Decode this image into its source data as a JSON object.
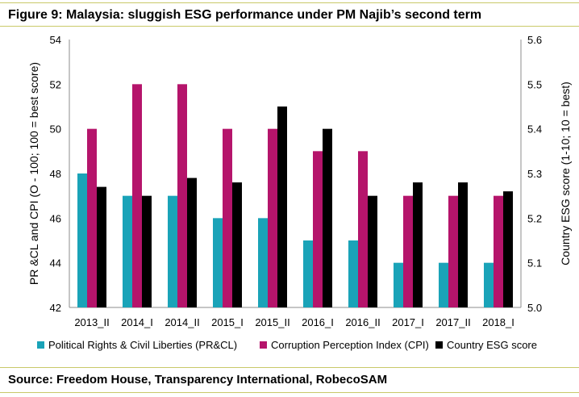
{
  "title": "Figure 9: Malaysia: sluggish ESG performance under PM Najib’s second term",
  "source": "Source: Freedom House, Transparency International, RobecoSAM",
  "chart_data": {
    "type": "bar",
    "categories": [
      "2013_II",
      "2014_I",
      "2014_II",
      "2015_I",
      "2015_II",
      "2016_I",
      "2016_II",
      "2017_I",
      "2017_II",
      "2018_I"
    ],
    "series": [
      {
        "name": "Political Rights & Civil Liberties (PR&CL)",
        "axis": "left",
        "color": "#1aa3b8",
        "values": [
          48,
          47,
          47,
          46,
          46,
          45,
          45,
          44,
          44,
          44
        ]
      },
      {
        "name": "Corruption Perception Index (CPI)",
        "axis": "left",
        "color": "#b5146b",
        "values": [
          50,
          52,
          52,
          50,
          50,
          49,
          49,
          47,
          47,
          47
        ]
      },
      {
        "name": "Country ESG score",
        "axis": "right",
        "color": "#000000",
        "values": [
          5.27,
          5.25,
          5.29,
          5.28,
          5.45,
          5.4,
          5.25,
          5.28,
          5.28,
          5.26
        ]
      }
    ],
    "ylabel": "PR &CL and CPI (O - 100; 100 = best score)",
    "y2label": "Country ESG score (1-10; 10 = best)",
    "ylim": [
      42,
      54
    ],
    "yticks": [
      "42",
      "44",
      "46",
      "48",
      "50",
      "52",
      "54"
    ],
    "y2lim": [
      5.0,
      5.6
    ],
    "y2ticks": [
      "5.0",
      "5.1",
      "5.2",
      "5.3",
      "5.4",
      "5.5",
      "5.6"
    ],
    "grid": false,
    "legend_position": "bottom"
  }
}
